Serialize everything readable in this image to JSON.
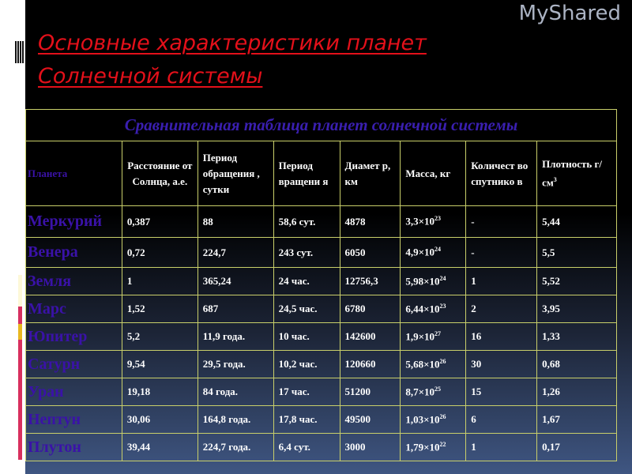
{
  "title_line1": "Основные характеристики планет",
  "title_line2": "Солнечной системы",
  "table": {
    "caption": "Сравнительная таблица планет солнечной системы",
    "headers": [
      "Планета",
      "Расстояние от Солнца, а.е.",
      "Период обращения , сутки",
      "Период вращени я",
      "Диамет р, км",
      "Масса, кг",
      "Количест во спутнико в",
      "Плотность г/см"
    ],
    "density_unit_sup": "3",
    "rows": [
      [
        "Меркурий",
        "0,387",
        "88",
        "58,6 сут.",
        "4878",
        "3,3×10",
        "23",
        "-",
        "5,44"
      ],
      [
        "Венера",
        "0,72",
        "224,7",
        "243 сут.",
        "6050",
        "4,9×10",
        "24",
        "-",
        "5,5"
      ],
      [
        "Земля",
        "1",
        "365,24",
        "24 час.",
        "12756,3",
        "5,98×10",
        "24",
        "1",
        "5,52"
      ],
      [
        "Марс",
        "1,52",
        "687",
        "24,5 час.",
        "6780",
        "6,44×10",
        "23",
        "2",
        "3,95"
      ],
      [
        "Юпитер",
        "5,2",
        "11,9 года.",
        "10 час.",
        "142600",
        "1,9×10",
        "27",
        "16",
        "1,33"
      ],
      [
        "Сатурн",
        "9,54",
        "29,5 года.",
        "10,2 час.",
        "120660",
        "5,68×10",
        "26",
        "30",
        "0,68"
      ],
      [
        "Уран",
        "19,18",
        "84 года.",
        "17 час.",
        "51200",
        "8,7×10",
        "25",
        "15",
        "1,26"
      ],
      [
        "Нептун",
        "30,06",
        "164,8 года.",
        "17,8 час.",
        "49500",
        "1,03×10",
        "26",
        "6",
        "1,67"
      ],
      [
        "Плутон",
        "39,44",
        "224,7 года.",
        "6,4 сут.",
        "3000",
        "1,79×10",
        "22",
        "1",
        "0,17"
      ]
    ]
  },
  "watermark": "MyShared"
}
